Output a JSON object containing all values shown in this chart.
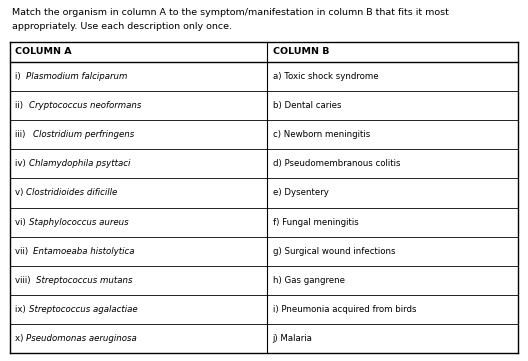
{
  "title_line1": "Match the organism in column A to the symptom/manifestation in column B that fits it most",
  "title_line2": "appropriately. Use each description only once.",
  "col_a_header": "COLUMN A",
  "col_b_header": "COLUMN B",
  "col_a_prefixes": [
    "i) ",
    "ii) ",
    "iii) ",
    "iv) ",
    "v) ",
    "vi) ",
    "vii) ",
    "viii) ",
    "ix) ",
    "x) "
  ],
  "col_a_organisms": [
    "Plasmodium falciparum",
    "Cryptococcus neoformans",
    "Clostridium perfringens",
    "Chlamydophila psyttaci",
    "Clostridioides dificille",
    "Staphylococcus aureus",
    "Entamoeaba histolytica",
    "Streptococcus mutans",
    "Streptococcus agalactiae",
    "Pseudomonas aeruginosa"
  ],
  "col_b_rows": [
    "a) Toxic shock syndrome",
    "b) Dental caries",
    "c) Newborn meningitis",
    "d) Pseudomembranous colitis",
    "e) Dysentery",
    "f) Fungal meningitis",
    "g) Surgical wound infections",
    "h) Gas gangrene",
    "i) Pneumonia acquired from birds",
    "j) Malaria"
  ],
  "background_color": "#ffffff",
  "text_color": "#000000",
  "header_font_size": 6.8,
  "row_font_size": 6.2,
  "title_font_size": 6.8,
  "fig_width": 5.28,
  "fig_height": 3.61,
  "dpi": 100
}
